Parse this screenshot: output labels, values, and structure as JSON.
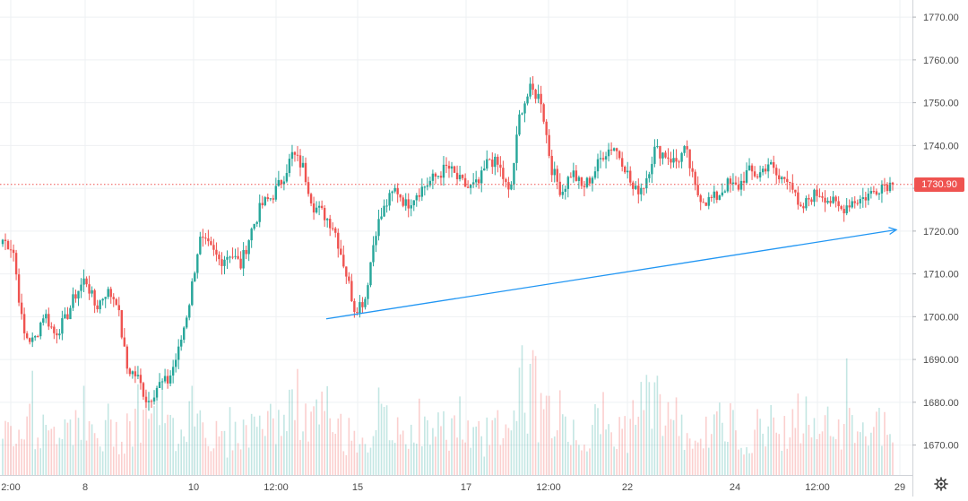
{
  "chart_data": {
    "type": "candlestick",
    "price_axis": {
      "range": [
        1663,
        1774
      ],
      "ticks": [
        1670,
        1680,
        1690,
        1700,
        1710,
        1720,
        1730,
        1740,
        1750,
        1760,
        1770
      ],
      "tick_labels": [
        "1670.00",
        "1680.00",
        "1690.00",
        "1700.00",
        "1710.00",
        "1720.00",
        "1730.00",
        "1740.00",
        "1750.00",
        "1760.00",
        "1770.00"
      ]
    },
    "time_axis": {
      "tick_labels": [
        "2:00",
        "8",
        "10",
        "12:00",
        "15",
        "17",
        "12:00",
        "22",
        "24",
        "12:00",
        "29"
      ]
    },
    "last_price": 1730.9,
    "last_price_label": "1730.90",
    "trend_line": {
      "start_price": 1699.5,
      "end_price": 1720.3
    },
    "price_path": [
      1718,
      1716,
      1696,
      1694,
      1701,
      1696,
      1699,
      1705,
      1709,
      1702,
      1706,
      1704,
      1688,
      1686,
      1680,
      1684,
      1685,
      1692,
      1703,
      1718,
      1716,
      1713,
      1715,
      1712,
      1720,
      1726,
      1728,
      1732,
      1738,
      1735,
      1726,
      1724,
      1721,
      1712,
      1702,
      1704,
      1720,
      1726,
      1730,
      1726,
      1729,
      1731,
      1733,
      1735,
      1732,
      1730,
      1731,
      1737,
      1735,
      1728,
      1748,
      1753,
      1751,
      1735,
      1729,
      1734,
      1730,
      1733,
      1738,
      1740,
      1736,
      1729,
      1731,
      1739,
      1738,
      1736,
      1739,
      1729,
      1727,
      1728,
      1731,
      1730,
      1734,
      1733,
      1736,
      1732,
      1733,
      1724,
      1728,
      1729,
      1727,
      1725,
      1727,
      1727.5,
      1729,
      1731,
      1730.9
    ],
    "volume": [
      60,
      88,
      110,
      70,
      55,
      80,
      90,
      95,
      60,
      50,
      75,
      65,
      85,
      100,
      120,
      95,
      70,
      80,
      115,
      90,
      60,
      55,
      70,
      65,
      80,
      90,
      75,
      100,
      110,
      80,
      85,
      95,
      70,
      60,
      65,
      55,
      90,
      75,
      60,
      70,
      80,
      65,
      70,
      75,
      85,
      60,
      55,
      70,
      80,
      75,
      150,
      130,
      100,
      95,
      90,
      70,
      60,
      75,
      85,
      65,
      70,
      80,
      110,
      125,
      100,
      80,
      70,
      65,
      60,
      80,
      75,
      70,
      65,
      70,
      80,
      75,
      70,
      90,
      85,
      75,
      70,
      65,
      120,
      80,
      75,
      70,
      60
    ],
    "colors": {
      "up": "#26a69a",
      "down": "#ef5350",
      "trend_line": "#2196f3",
      "last_price": "#ef5350"
    }
  },
  "icons": {
    "settings": "gear-icon"
  }
}
